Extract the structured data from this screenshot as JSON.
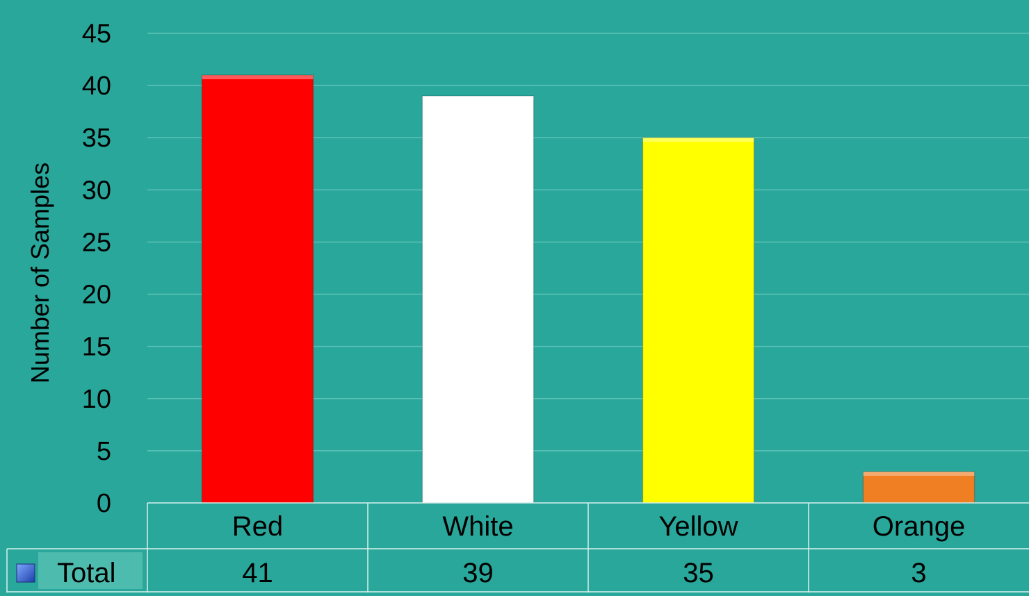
{
  "colors": {
    "background": "#2aa79b",
    "gridline": "#5fc3b7",
    "table_line": "#d8f2ee",
    "text": "#000000",
    "legend_cell": "#4dbcae",
    "legend_marker": "#2f5fd0"
  },
  "chart_data": {
    "type": "bar",
    "categories": [
      "Red",
      "White",
      "Yellow",
      "Orange"
    ],
    "series": [
      {
        "name": "Total",
        "values": [
          41,
          39,
          35,
          3
        ],
        "colors": [
          "#ff0000",
          "#ffffff",
          "#ffff00",
          "#f07f24"
        ]
      }
    ],
    "ylabel": "Number of Samples",
    "xlabel": "",
    "ylim": [
      0,
      45
    ],
    "yticks": [
      0,
      5,
      10,
      15,
      20,
      25,
      30,
      35,
      40,
      45
    ],
    "grid": true,
    "legend": "data-table-left",
    "data_table": true
  }
}
